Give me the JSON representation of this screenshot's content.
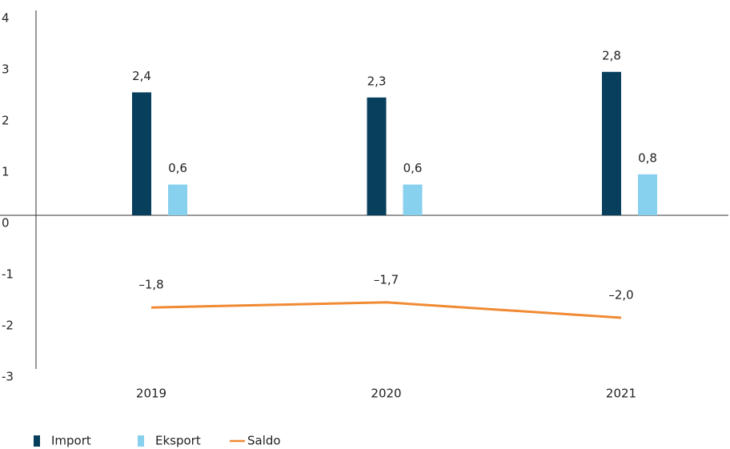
{
  "chart_data": {
    "type": "bar_line",
    "categories": [
      "2019",
      "2020",
      "2021"
    ],
    "series": [
      {
        "name": "Import",
        "color": "#083f5c",
        "type": "bar",
        "values": [
          2.4,
          2.3,
          2.8
        ],
        "value_labels": [
          "2,4",
          "2,3",
          "2,8"
        ]
      },
      {
        "name": "Eksport",
        "color": "#87d0ee",
        "type": "bar",
        "values": [
          0.6,
          0.6,
          0.8
        ],
        "value_labels": [
          "0,6",
          "0,6",
          "0,8"
        ]
      },
      {
        "name": "Saldo",
        "color": "#f08a33",
        "type": "line",
        "values": [
          -1.8,
          -1.7,
          -2.0
        ],
        "value_labels": [
          "–1,8",
          "–1,7",
          "–2,0"
        ]
      }
    ],
    "ylim": [
      -3,
      4
    ],
    "yticks": [
      -3,
      -2,
      -1,
      0,
      1,
      2,
      3,
      4
    ],
    "grid": false,
    "legend": "bottom-left"
  }
}
